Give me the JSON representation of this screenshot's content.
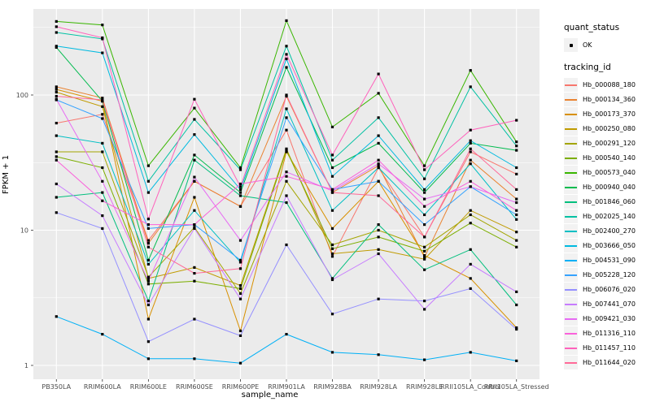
{
  "chart_data": {
    "type": "line",
    "title": "",
    "xlabel": "sample_name",
    "ylabel": "FPKM + 1",
    "y_scale": "log10",
    "ylim": [
      0.9,
      434
    ],
    "y_ticks": [
      1,
      10,
      100
    ],
    "y_tick_labels": [
      "1",
      "10",
      "100"
    ],
    "y_minor_gridlines": [
      3.162,
      31.62,
      316.2
    ],
    "grid": "on",
    "legend_position": "right",
    "x_categories": [
      "PB350LA",
      "RRIM600LA",
      "RRIM600LE",
      "RRIM600SE",
      "RRIM600PE",
      "RRIM901LA",
      "RRIM928BA",
      "RRIM928LA",
      "RRIM928LE",
      "RRII105LA_Control",
      "RRII105LA_Stressed"
    ],
    "legend": {
      "quant_status_title": "quant_status",
      "ok_label": "OK",
      "tracking_title": "tracking_id"
    },
    "series": [
      {
        "name": "Hb_000088_180",
        "color": "#F8766D",
        "values": [
          62,
          72,
          8.4,
          23,
          15,
          55,
          6.4,
          29,
          8.9,
          38,
          26
        ]
      },
      {
        "name": "Hb_000134_360",
        "color": "#EA8331",
        "values": [
          115,
          95,
          8.0,
          23,
          15,
          98,
          19,
          30,
          6.3,
          33,
          17
        ]
      },
      {
        "name": "Hb_000173_370",
        "color": "#D89000",
        "values": [
          110,
          90,
          2.2,
          17.5,
          1.8,
          38,
          10.3,
          23,
          6.5,
          4.4,
          1.9
        ]
      },
      {
        "name": "Hb_000250_080",
        "color": "#C09B00",
        "values": [
          105,
          82,
          4.4,
          5.3,
          3.9,
          40,
          6.7,
          7.2,
          6.1,
          14,
          9.7
        ]
      },
      {
        "name": "Hb_000291_120",
        "color": "#A3A500",
        "values": [
          38,
          38,
          4.5,
          10.5,
          3.4,
          23,
          7.8,
          10,
          7.5,
          13,
          8.4
        ]
      },
      {
        "name": "Hb_000540_140",
        "color": "#7CAE00",
        "values": [
          35,
          29,
          4.0,
          4.2,
          3.7,
          39,
          7.3,
          8.9,
          7.0,
          11.3,
          7.5
        ]
      },
      {
        "name": "Hb_000573_040",
        "color": "#39B600",
        "values": [
          350,
          330,
          30,
          80,
          29,
          355,
          58,
          103,
          30,
          152,
          45
        ]
      },
      {
        "name": "Hb_000940_040",
        "color": "#00BB4E",
        "values": [
          225,
          90,
          6.0,
          36,
          19,
          160,
          29,
          44,
          19,
          44,
          39
        ]
      },
      {
        "name": "Hb_001846_060",
        "color": "#00BF7D",
        "values": [
          17.5,
          19,
          3.0,
          33,
          18,
          16,
          4.4,
          11,
          5.1,
          7.2,
          2.8
        ]
      },
      {
        "name": "Hb_002025_140",
        "color": "#00C1A3",
        "values": [
          290,
          260,
          23,
          66,
          28,
          230,
          33,
          68,
          24,
          115,
          42
        ]
      },
      {
        "name": "Hb_002400_270",
        "color": "#00BFC4",
        "values": [
          50,
          44,
          5.6,
          14,
          5.8,
          79,
          14,
          29,
          13,
          31,
          12
        ]
      },
      {
        "name": "Hb_003666_050",
        "color": "#00BAE0",
        "values": [
          230,
          205,
          19,
          51,
          20,
          185,
          25,
          50,
          20,
          46,
          29
        ]
      },
      {
        "name": "Hb_004531_090",
        "color": "#00B0F6",
        "values": [
          2.3,
          1.7,
          1.12,
          1.12,
          1.04,
          1.7,
          1.25,
          1.2,
          1.1,
          1.25,
          1.08
        ]
      },
      {
        "name": "Hb_005228_120",
        "color": "#35A2FF",
        "values": [
          92,
          67,
          10.3,
          11,
          6.0,
          68,
          20,
          23,
          11,
          21,
          13
        ]
      },
      {
        "name": "Hb_006076_020",
        "color": "#9590FF",
        "values": [
          13.5,
          10.3,
          1.5,
          2.2,
          1.66,
          7.8,
          2.4,
          3.1,
          3.0,
          3.7,
          1.85
        ]
      },
      {
        "name": "Hb_007441_070",
        "color": "#C77CFF",
        "values": [
          22,
          12.8,
          2.8,
          10.3,
          3.1,
          18,
          4.3,
          6.7,
          2.6,
          5.6,
          3.5
        ]
      },
      {
        "name": "Hb_009421_030",
        "color": "#E76BF3",
        "values": [
          93,
          23,
          4.2,
          24.7,
          8.4,
          27,
          19.5,
          31,
          17,
          21,
          16
        ]
      },
      {
        "name": "Hb_011316_110",
        "color": "#FA62DB",
        "values": [
          33,
          16.5,
          11,
          11,
          22,
          25,
          20,
          33,
          15,
          23,
          14
        ]
      },
      {
        "name": "Hb_011457_110",
        "color": "#FF62BC",
        "values": [
          320,
          265,
          12.1,
          93,
          21,
          200,
          36,
          143,
          28,
          55,
          65
        ]
      },
      {
        "name": "Hb_011644_020",
        "color": "#FF6A98",
        "values": [
          98,
          92,
          7.5,
          4.8,
          5.2,
          100,
          19,
          18,
          8.9,
          40,
          20
        ]
      }
    ]
  },
  "colors": {
    "panel_bg": "#EBEBEB",
    "gridline": "#FFFFFF",
    "axis_text": "#4D4D4D",
    "tick_mark": "#333333",
    "point": "#000000",
    "legend_key_bg": "#F2F2F2"
  }
}
